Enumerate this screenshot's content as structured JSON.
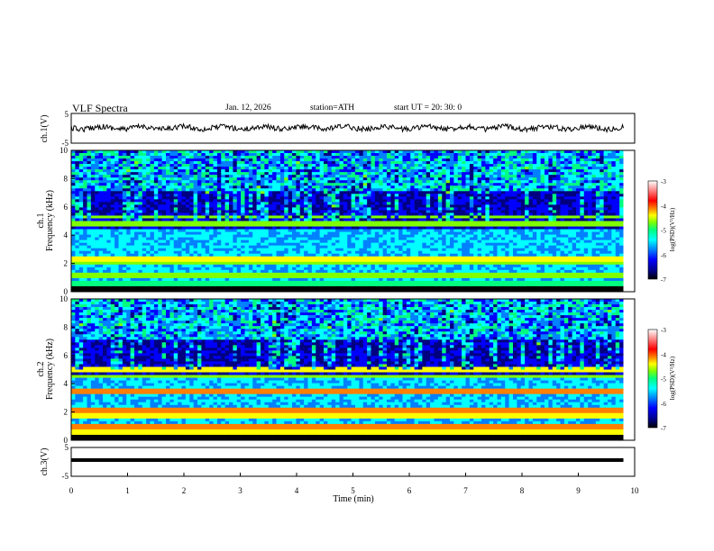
{
  "header": {
    "title": "VLF  Spectra",
    "date": "Jan. 12, 2026",
    "station": "station=ATH",
    "start": "start  UT  =   20: 30: 0"
  },
  "chart_data": [
    {
      "type": "line",
      "panel": "ch1-waveform",
      "ylabel": "ch.1(V)",
      "ylim": [
        -5,
        5
      ],
      "yticks": [
        "5",
        "-5"
      ],
      "xlim": [
        0,
        10
      ],
      "description_values": "noisy waveform centered near 0 V with amplitude about ±1 V over 0–9.8 min"
    },
    {
      "type": "heatmap",
      "panel": "ch1-spectrogram",
      "ylabel": "ch.1\nFrequency (kHz)",
      "ylabel_line1": "ch.1",
      "ylabel_line2": "Frequency (kHz)",
      "ylim": [
        0,
        10
      ],
      "yticks": [
        "0",
        "2",
        "4",
        "6",
        "8",
        "10"
      ],
      "xlim": [
        0,
        10
      ],
      "colorbar": {
        "label": "log(PSD)(V²/Hz)",
        "range": [
          -7,
          -3
        ],
        "ticks": [
          "-3",
          "-4",
          "-5",
          "-6",
          "-7"
        ]
      }
    },
    {
      "type": "heatmap",
      "panel": "ch2-spectrogram",
      "ylabel_line1": "ch.2",
      "ylabel_line2": "Frequency (kHz)",
      "ylim": [
        0,
        10
      ],
      "yticks": [
        "0",
        "2",
        "4",
        "6",
        "8",
        "10"
      ],
      "xlim": [
        0,
        10
      ],
      "colorbar": {
        "label": "log(PSD)(V²/Hz)",
        "range": [
          -7,
          -3
        ],
        "ticks": [
          "-3",
          "-4",
          "-5",
          "-6",
          "-7"
        ]
      }
    },
    {
      "type": "line",
      "panel": "ch3-waveform",
      "ylabel": "ch.3(V)",
      "ylim": [
        -5,
        5
      ],
      "yticks": [
        "5",
        "-5"
      ],
      "xlim": [
        0,
        10
      ],
      "values_note": "flat trace near -1.5 V"
    }
  ],
  "xaxis": {
    "label": "Time  (min)",
    "ticks": [
      "0",
      "1",
      "2",
      "3",
      "4",
      "5",
      "6",
      "7",
      "8",
      "9",
      "10"
    ]
  },
  "colors": {
    "scale": [
      "#000000",
      "#000080",
      "#0000ff",
      "#0080ff",
      "#00ffff",
      "#00ff80",
      "#80ff00",
      "#ffff00",
      "#ff8000",
      "#ff0000",
      "#ff8080",
      "#ffffff"
    ]
  }
}
